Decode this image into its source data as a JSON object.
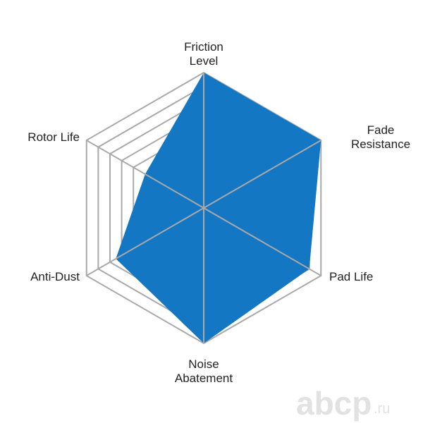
{
  "chart_data": {
    "type": "radar",
    "axes": [
      "Friction Level",
      "Fade Resistance",
      "Pad Life",
      "Noise Abatement",
      "Anti-Dust",
      "Rotor Life"
    ],
    "axis_label_lines": [
      [
        "Friction",
        "Level"
      ],
      [
        "Fade",
        "Resistance"
      ],
      [
        "Pad Life"
      ],
      [
        "Noise",
        "Abatement"
      ],
      [
        "Anti-Dust"
      ],
      [
        "Rotor Life"
      ]
    ],
    "values": [
      10,
      10,
      9,
      10,
      7.5,
      5
    ],
    "range": [
      0,
      10
    ],
    "grid_levels": [
      6,
      7,
      8,
      9,
      10
    ],
    "fill_color": "#1477c4",
    "grid_color": "#a9a9a9"
  },
  "watermark": {
    "main": "abcp",
    "suffix": ".ru"
  }
}
